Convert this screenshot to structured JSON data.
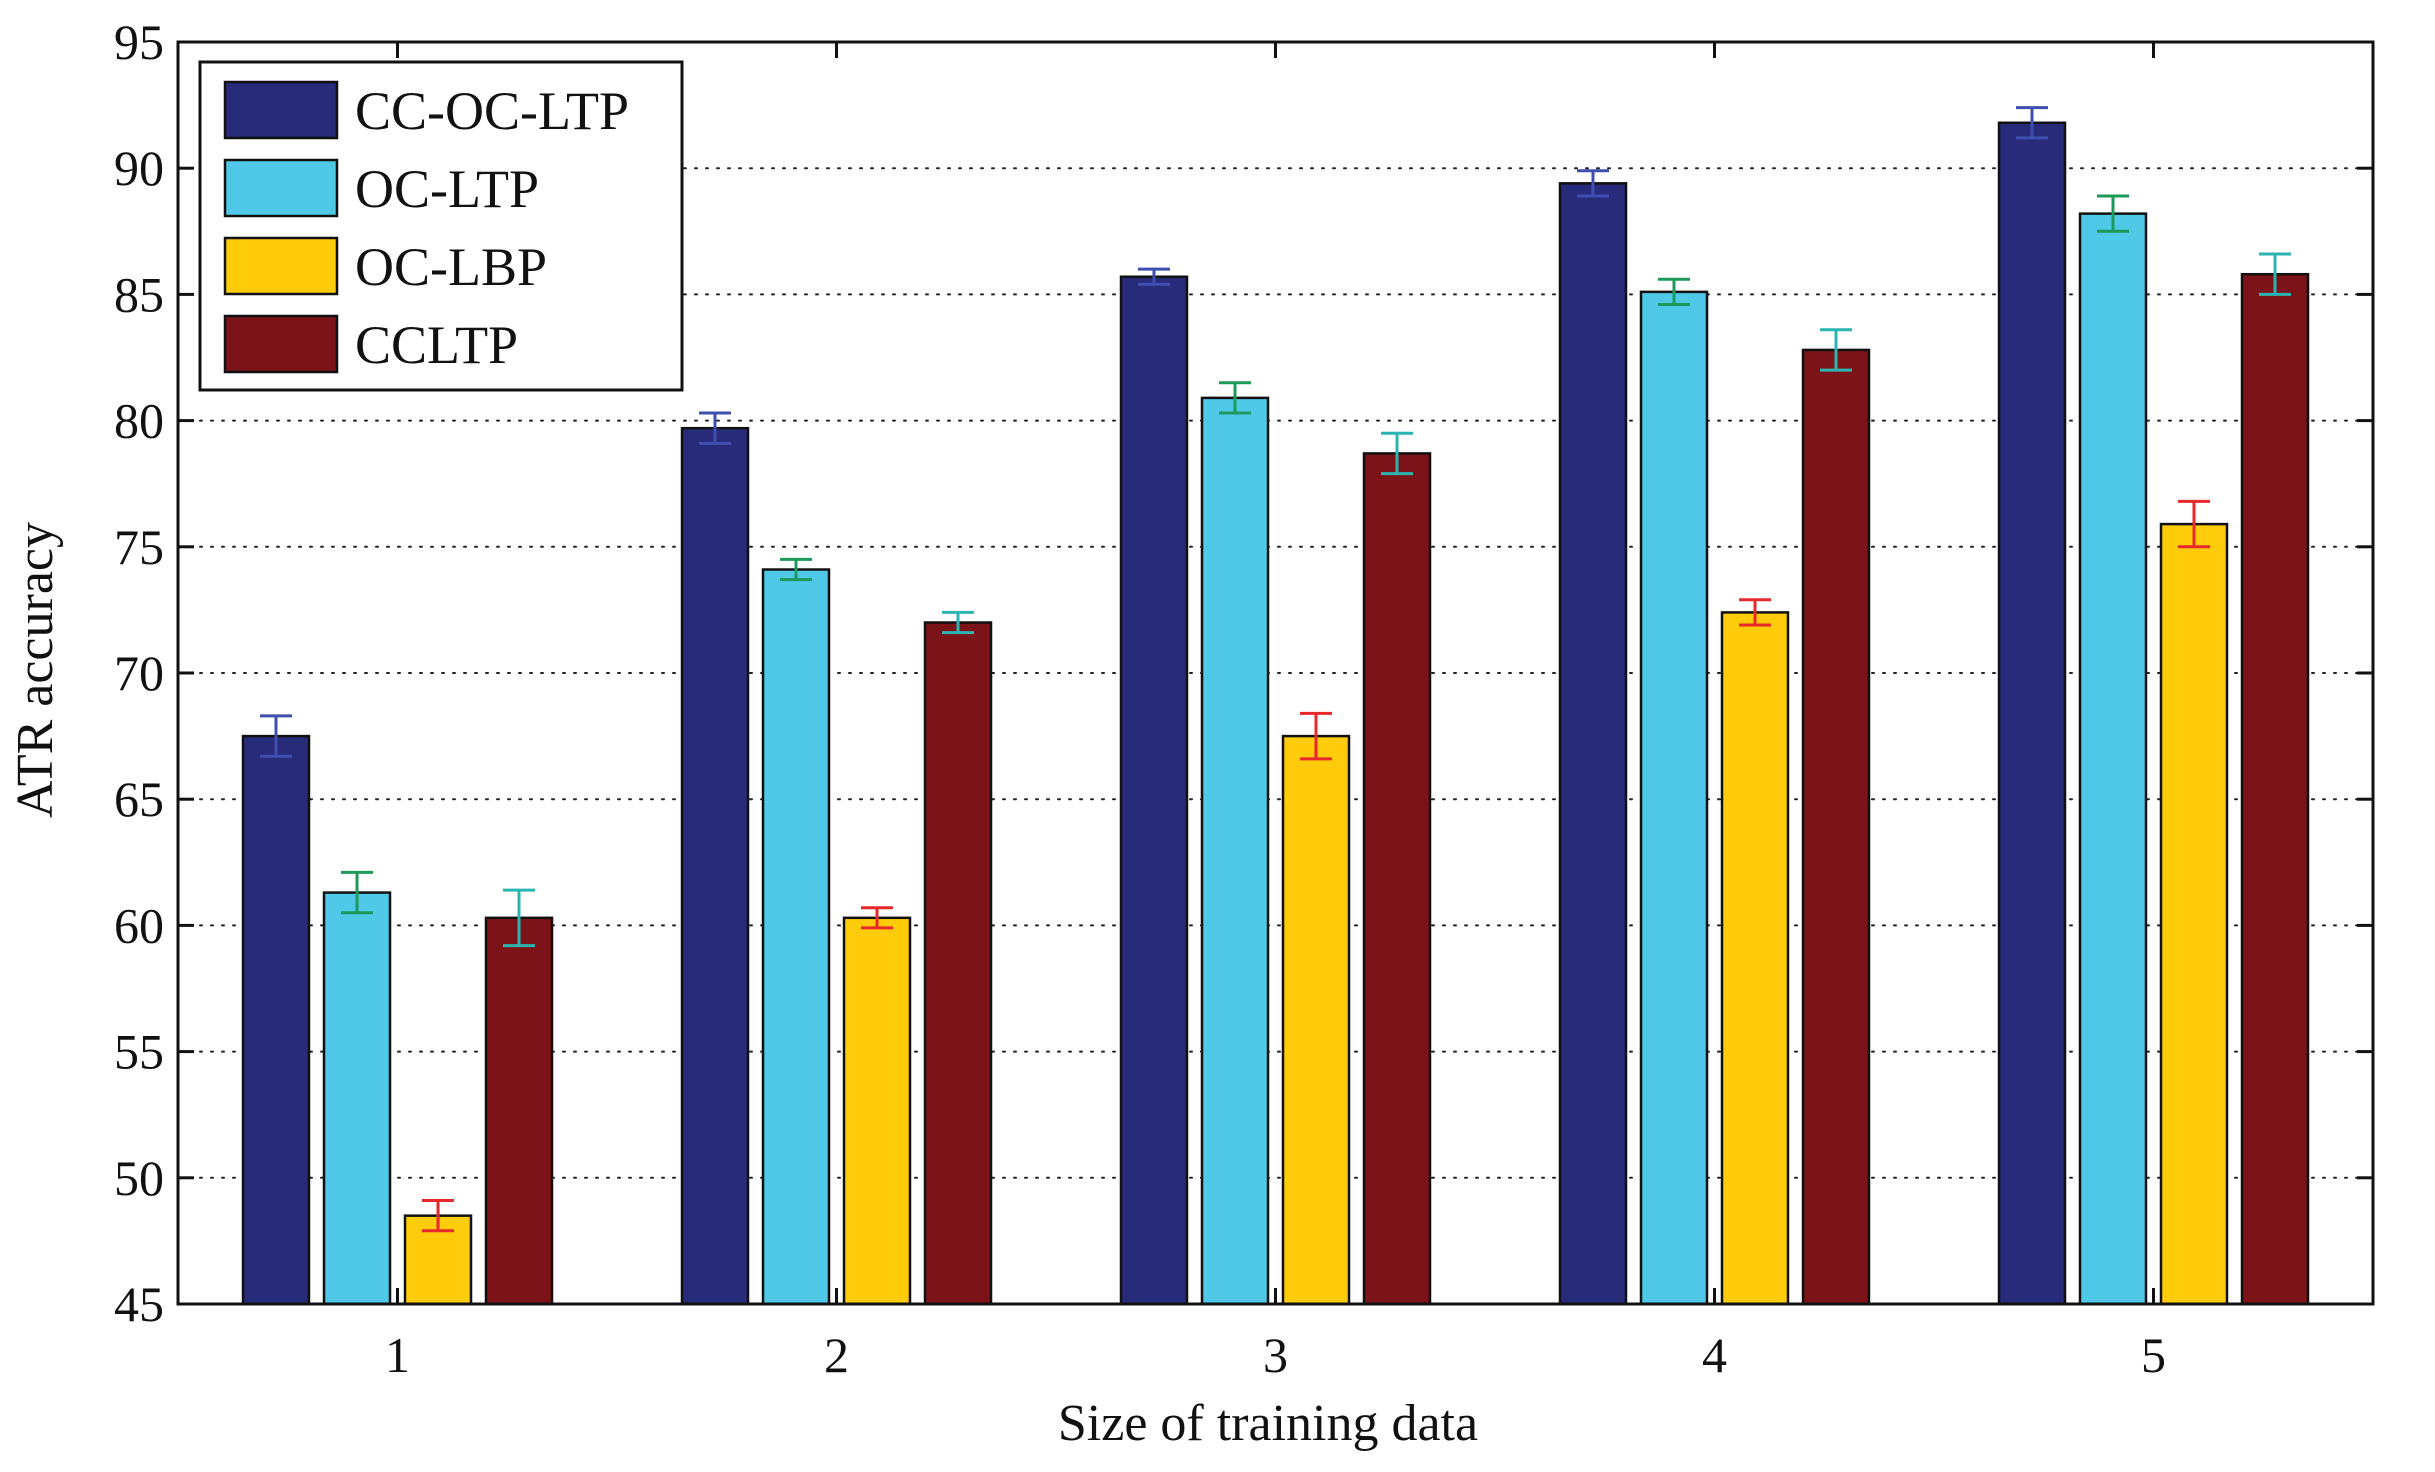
{
  "chart_data": {
    "type": "bar",
    "title": "",
    "xlabel": "Size of training data",
    "ylabel": "ATR accuracy",
    "categories": [
      "1",
      "2",
      "3",
      "4",
      "5"
    ],
    "ylim": [
      45,
      95
    ],
    "yticks": [
      45,
      50,
      55,
      60,
      65,
      70,
      75,
      80,
      85,
      90,
      95
    ],
    "grid": "horizontal-dotted",
    "legend_position": "top-left",
    "series": [
      {
        "name": "CC-OC-LTP",
        "color": "#282a7a",
        "error_color": "#3f4fb0",
        "values": [
          67.5,
          79.7,
          85.7,
          89.4,
          91.8
        ],
        "errors": [
          0.8,
          0.6,
          0.3,
          0.5,
          0.6
        ]
      },
      {
        "name": "OC-LTP",
        "color": "#50c8e8",
        "error_color": "#1c9a5a",
        "values": [
          61.3,
          74.1,
          80.9,
          85.1,
          88.2
        ],
        "errors": [
          0.8,
          0.4,
          0.6,
          0.5,
          0.7
        ]
      },
      {
        "name": "OC-LBP",
        "color": "#fecc0a",
        "error_color": "#e8292b",
        "values": [
          48.5,
          60.3,
          67.5,
          72.4,
          75.9
        ],
        "errors": [
          0.6,
          0.4,
          0.9,
          0.5,
          0.9
        ]
      },
      {
        "name": "CCLTP",
        "color": "#7c1318",
        "error_color": "#2bb5b0",
        "values": [
          60.3,
          72.0,
          78.7,
          82.8,
          85.8
        ],
        "errors": [
          1.1,
          0.4,
          0.8,
          0.8,
          0.8
        ]
      }
    ]
  }
}
